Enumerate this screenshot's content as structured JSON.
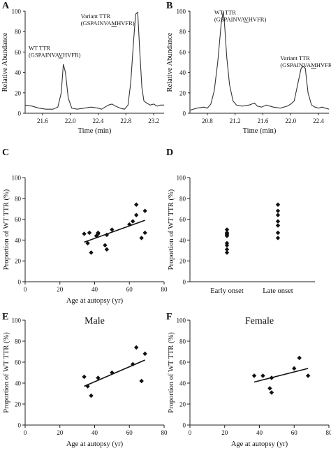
{
  "chart_data": [
    {
      "panel": "A",
      "type": "line",
      "xlabel": "Time (min)",
      "ylabel": "Relative Abundance",
      "xlim": [
        21.35,
        23.35
      ],
      "ylim": [
        0,
        100
      ],
      "xticks": [
        "21.6",
        "22.0",
        "22.4",
        "22.8",
        "23.2"
      ],
      "yticks": [
        "0",
        "20",
        "40",
        "60",
        "80",
        "100"
      ],
      "x": [
        21.35,
        21.45,
        21.55,
        21.65,
        21.75,
        21.82,
        21.87,
        21.9,
        21.93,
        21.97,
        22.02,
        22.1,
        22.2,
        22.3,
        22.4,
        22.45,
        22.5,
        22.55,
        22.6,
        22.65,
        22.72,
        22.78,
        22.83,
        22.87,
        22.91,
        22.94,
        22.97,
        23.0,
        23.03,
        23.06,
        23.1,
        23.15,
        23.2,
        23.25,
        23.3,
        23.35
      ],
      "y": [
        8,
        7,
        5,
        4,
        4,
        6,
        20,
        48,
        40,
        15,
        5,
        4,
        5,
        6,
        5,
        4,
        6,
        8,
        9,
        7,
        5,
        4,
        8,
        30,
        70,
        97,
        99,
        60,
        25,
        12,
        10,
        8,
        9,
        7,
        8,
        8
      ],
      "annotations": [
        {
          "lines": [
            "WT TTR",
            "(GSPAINVAVHVFR)"
          ],
          "x": 21.4,
          "y": 62,
          "underline": {
            "line": 1,
            "start": 9,
            "length": 1
          }
        },
        {
          "lines": [
            "Variant TTR",
            "(GSPAINVAMHVFR)"
          ],
          "x": 22.15,
          "y": 93,
          "underline": {
            "line": 1,
            "start": 9,
            "length": 1
          }
        }
      ]
    },
    {
      "panel": "B",
      "type": "line",
      "xlabel": "Time (min)",
      "ylabel": "Relative Abundance",
      "xlim": [
        20.55,
        22.55
      ],
      "ylim": [
        0,
        100
      ],
      "xticks": [
        "20.8",
        "21.2",
        "21.6",
        "22.0",
        "22.4"
      ],
      "yticks": [
        "0",
        "20",
        "40",
        "60",
        "80",
        "100"
      ],
      "x": [
        20.55,
        20.65,
        20.75,
        20.8,
        20.85,
        20.9,
        20.95,
        21.0,
        21.03,
        21.05,
        21.08,
        21.12,
        21.17,
        21.22,
        21.3,
        21.4,
        21.48,
        21.52,
        21.58,
        21.65,
        21.75,
        21.85,
        21.95,
        22.0,
        22.05,
        22.1,
        22.15,
        22.18,
        22.21,
        22.25,
        22.3,
        22.35,
        22.4,
        22.45,
        22.5,
        22.55
      ],
      "y": [
        3,
        5,
        6,
        5,
        9,
        22,
        50,
        88,
        100,
        85,
        55,
        28,
        12,
        8,
        7,
        8,
        10,
        7,
        6,
        8,
        6,
        5,
        7,
        9,
        12,
        28,
        44,
        46,
        44,
        20,
        8,
        6,
        5,
        6,
        5,
        4
      ],
      "annotations": [
        {
          "lines": [
            "WT TTR",
            "(GSPAINVAVHVFR)"
          ],
          "x": 20.9,
          "y": 97,
          "underline": {
            "line": 1,
            "start": 9,
            "length": 1
          }
        },
        {
          "lines": [
            "Variant TTR",
            "(GSPAINVAMHVFR)"
          ],
          "x": 21.85,
          "y": 52,
          "underline": {
            "line": 1,
            "start": 9,
            "length": 1
          }
        }
      ]
    },
    {
      "panel": "C",
      "type": "scatter",
      "xlabel": "Age at autopsy (yr)",
      "ylabel": "Proportion of WT TTR (%)",
      "xlim": [
        0,
        80
      ],
      "ylim": [
        0,
        100
      ],
      "xticks": [
        "0",
        "20",
        "40",
        "60",
        "80"
      ],
      "yticks": [
        "0",
        "20",
        "40",
        "60",
        "80",
        "100"
      ],
      "points": [
        [
          34,
          46
        ],
        [
          36,
          37
        ],
        [
          37,
          47
        ],
        [
          38,
          28
        ],
        [
          41,
          44
        ],
        [
          42,
          46
        ],
        [
          42,
          47
        ],
        [
          46,
          35
        ],
        [
          47,
          31
        ],
        [
          47,
          45
        ],
        [
          50,
          50
        ],
        [
          60,
          55
        ],
        [
          62,
          58
        ],
        [
          64,
          64
        ],
        [
          64,
          74
        ],
        [
          67,
          42
        ],
        [
          69,
          47
        ],
        [
          69,
          68
        ]
      ],
      "fit": [
        [
          34,
          38
        ],
        [
          69,
          59
        ]
      ]
    },
    {
      "panel": "D",
      "type": "scatter",
      "xlabel": "",
      "ylabel": "Proportion of WT TTR (%)",
      "categories": [
        "Early onset",
        "Late onset"
      ],
      "ylim": [
        0,
        100
      ],
      "yticks": [
        "0",
        "20",
        "40",
        "60",
        "80",
        "100"
      ],
      "series": [
        {
          "category": "Early onset",
          "values": [
            28,
            31,
            35,
            37,
            44,
            45,
            46,
            47,
            50
          ]
        },
        {
          "category": "Late onset",
          "values": [
            42,
            47,
            54,
            58,
            64,
            68,
            74
          ]
        }
      ]
    },
    {
      "panel": "E",
      "type": "scatter",
      "title": "Male",
      "xlabel": "Age at autopsy (yr)",
      "ylabel": "Proportion of WT TTR (%)",
      "xlim": [
        0,
        80
      ],
      "ylim": [
        0,
        100
      ],
      "xticks": [
        "0",
        "20",
        "40",
        "60",
        "80"
      ],
      "yticks": [
        "0",
        "20",
        "40",
        "60",
        "80",
        "100"
      ],
      "points": [
        [
          34,
          46
        ],
        [
          36,
          37
        ],
        [
          38,
          28
        ],
        [
          42,
          45
        ],
        [
          50,
          50
        ],
        [
          62,
          58
        ],
        [
          64,
          74
        ],
        [
          67,
          42
        ],
        [
          69,
          68
        ]
      ],
      "fit": [
        [
          34,
          37
        ],
        [
          69,
          62
        ]
      ]
    },
    {
      "panel": "F",
      "type": "scatter",
      "title": "Female",
      "xlabel": "Age at autopsy (yr)",
      "ylabel": "Proportion of WT TTR (%)",
      "xlim": [
        0,
        80
      ],
      "ylim": [
        0,
        100
      ],
      "xticks": [
        "0",
        "20",
        "40",
        "60",
        "80"
      ],
      "yticks": [
        "0",
        "20",
        "40",
        "60",
        "80",
        "100"
      ],
      "points": [
        [
          37,
          47
        ],
        [
          42,
          47
        ],
        [
          46,
          35
        ],
        [
          47,
          31
        ],
        [
          47,
          45
        ],
        [
          60,
          54
        ],
        [
          63,
          64
        ],
        [
          68,
          47
        ]
      ],
      "fit": [
        [
          37,
          41
        ],
        [
          68,
          54
        ]
      ]
    }
  ]
}
